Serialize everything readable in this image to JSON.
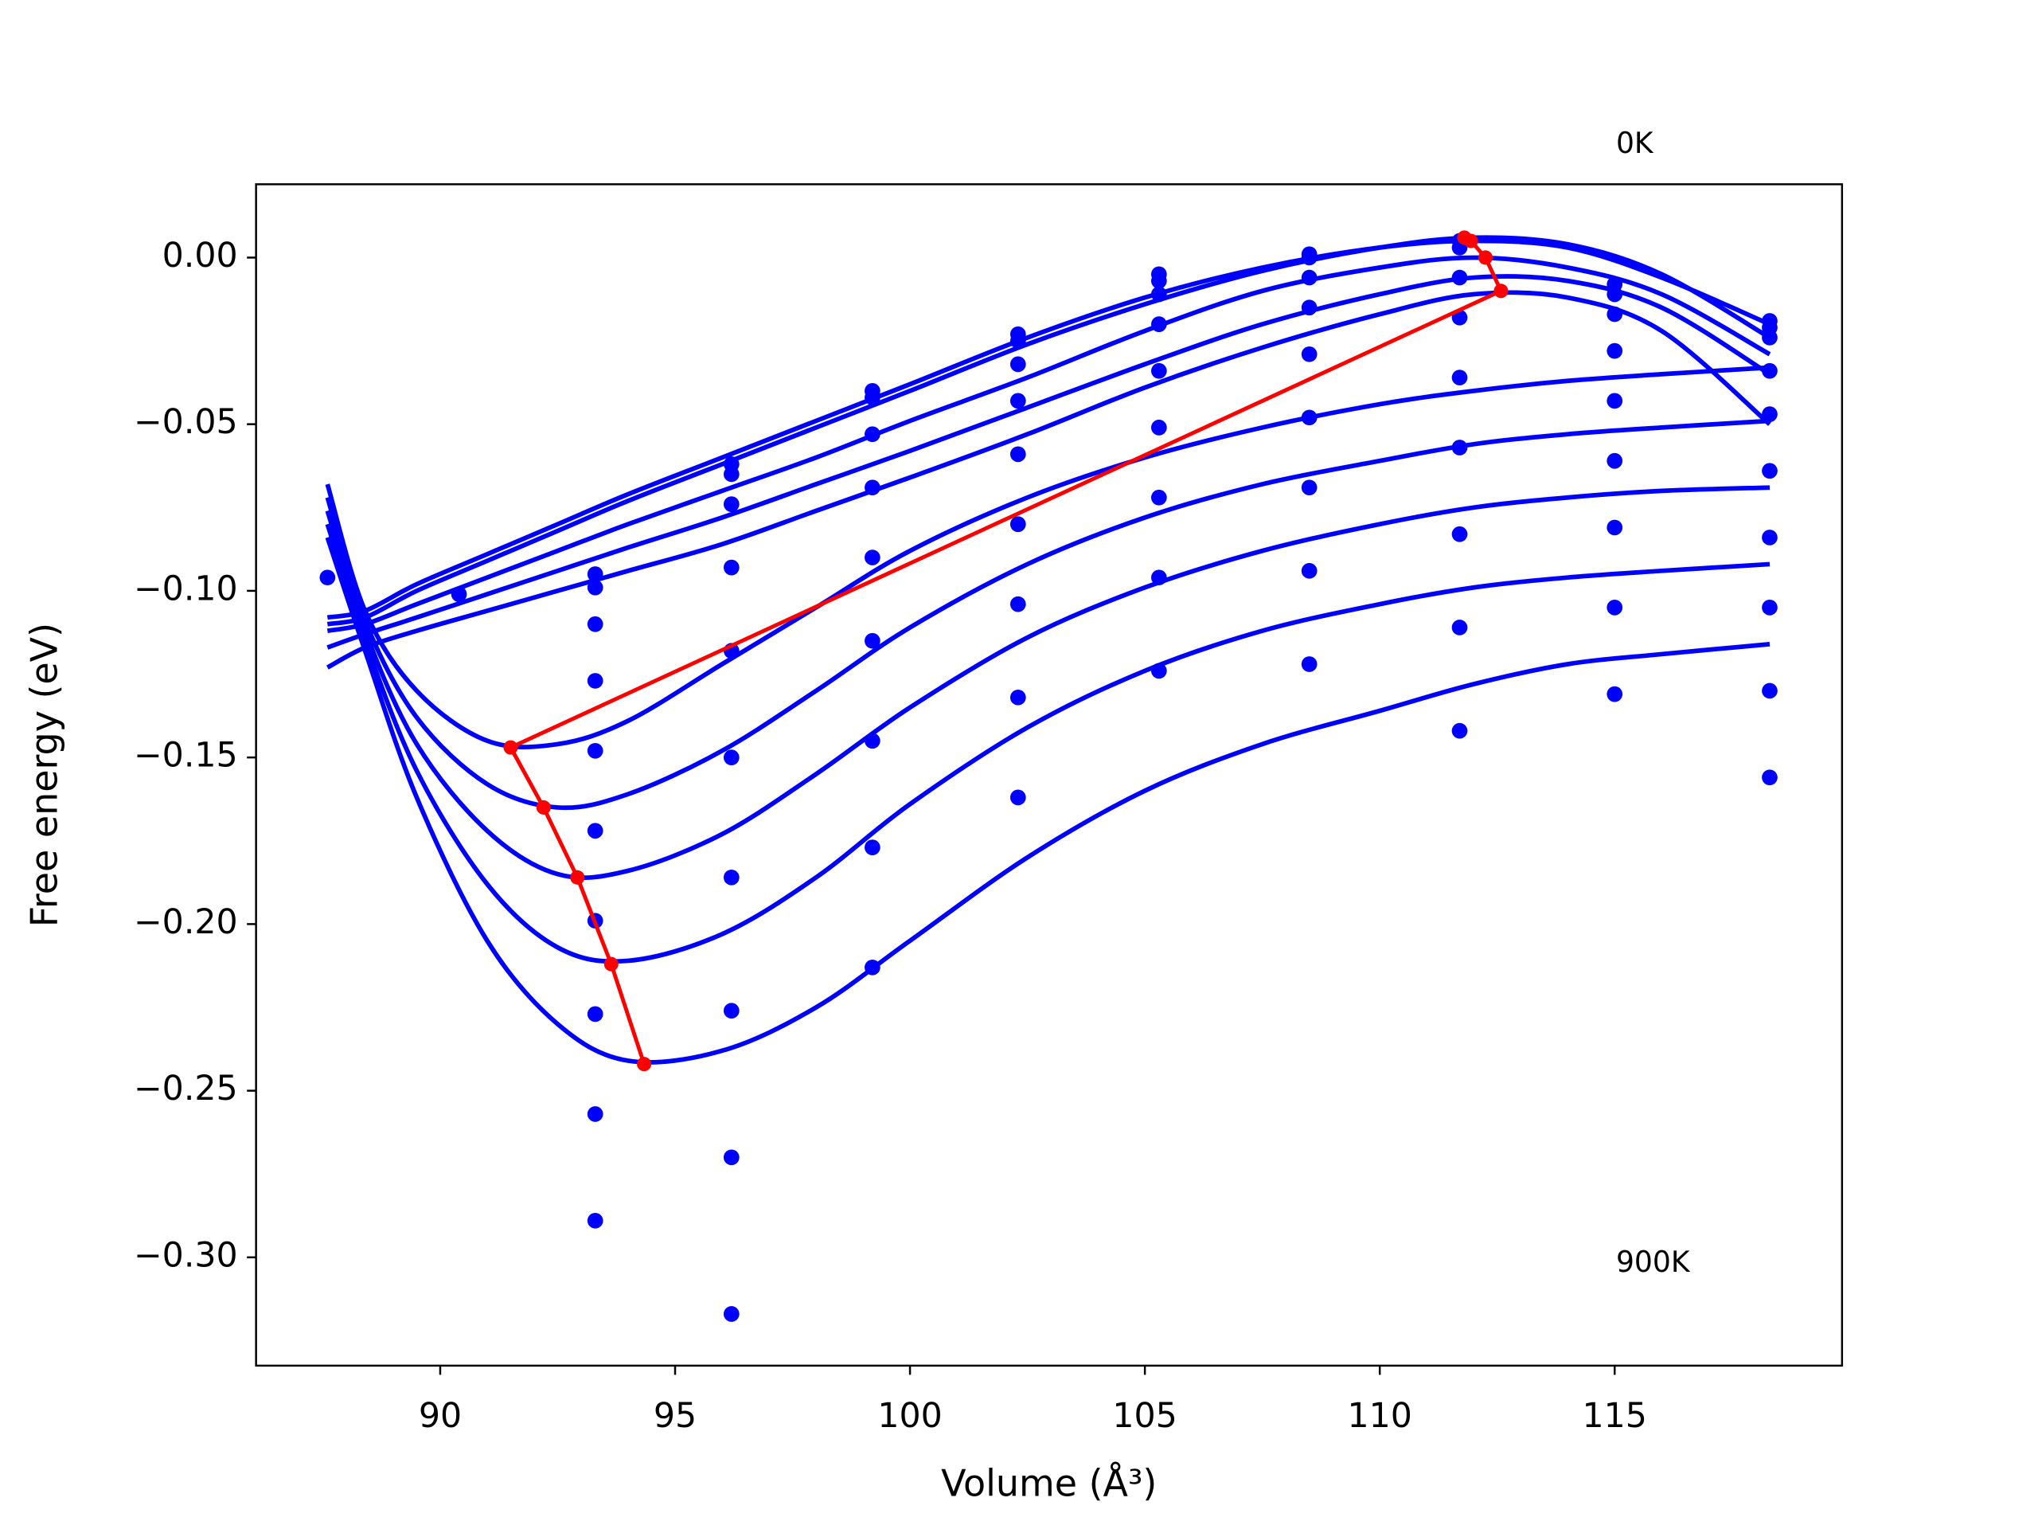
{
  "chart_data": {
    "type": "line",
    "xlabel": "Volume (Å³)",
    "ylabel": "Free energy (eV)",
    "annotations": [
      "0K",
      "900K"
    ],
    "xlim": [
      86.08,
      119.84
    ],
    "ylim": [
      -0.3325,
      0.022
    ],
    "xticks": [
      90,
      95,
      100,
      105,
      110,
      115
    ],
    "yticks": [
      {
        "value": 0.0,
        "label": "0.00"
      },
      {
        "value": -0.05,
        "label": "−0.05"
      },
      {
        "value": -0.1,
        "label": "−0.10"
      },
      {
        "value": -0.15,
        "label": "−0.15"
      },
      {
        "value": -0.2,
        "label": "−0.20"
      },
      {
        "value": -0.25,
        "label": "−0.25"
      },
      {
        "value": -0.3,
        "label": "−0.30"
      }
    ],
    "grid": false,
    "x": [
      87.6,
      88.4,
      89.5,
      91,
      92.5,
      94,
      96,
      98,
      100,
      102.5,
      105,
      107.5,
      110,
      112,
      114,
      116,
      118.3
    ],
    "series": [
      {
        "color": "#0000ff",
        "values": [
          -0.108,
          -0.106,
          -0.098,
          -0.089,
          -0.08,
          -0.071,
          -0.06,
          -0.049,
          -0.038,
          -0.024,
          -0.012,
          -0.003,
          0.003,
          0.005,
          0.003,
          -0.006,
          -0.02
        ]
      },
      {
        "color": "#0000ff",
        "values": [
          -0.11,
          -0.108,
          -0.1,
          -0.091,
          -0.082,
          -0.073,
          -0.062,
          -0.051,
          -0.04,
          -0.026,
          -0.014,
          -0.004,
          0.003,
          0.006,
          0.004,
          -0.005,
          -0.024
        ]
      },
      {
        "color": "#0000ff",
        "values": [
          -0.112,
          -0.11,
          -0.104,
          -0.096,
          -0.088,
          -0.08,
          -0.07,
          -0.06,
          -0.049,
          -0.036,
          -0.022,
          -0.01,
          -0.003,
          0.0,
          -0.003,
          -0.011,
          -0.029
        ]
      },
      {
        "color": "#0000ff",
        "values": [
          -0.117,
          -0.113,
          -0.108,
          -0.101,
          -0.094,
          -0.087,
          -0.078,
          -0.068,
          -0.058,
          -0.045,
          -0.032,
          -0.02,
          -0.011,
          -0.006,
          -0.007,
          -0.015,
          -0.035
        ]
      },
      {
        "color": "#0000ff",
        "values": [
          -0.123,
          -0.117,
          -0.112,
          -0.106,
          -0.1,
          -0.094,
          -0.086,
          -0.076,
          -0.066,
          -0.053,
          -0.039,
          -0.027,
          -0.017,
          -0.011,
          -0.012,
          -0.022,
          -0.05
        ]
      },
      {
        "color": "#0000ff",
        "values": [
          -0.068,
          -0.106,
          -0.13,
          -0.145,
          -0.146,
          -0.139,
          -0.122,
          -0.105,
          -0.088,
          -0.072,
          -0.06,
          -0.051,
          -0.044,
          -0.04,
          -0.037,
          -0.035,
          -0.033
        ]
      },
      {
        "color": "#0000ff",
        "values": [
          -0.072,
          -0.109,
          -0.138,
          -0.158,
          -0.165,
          -0.161,
          -0.148,
          -0.13,
          -0.111,
          -0.092,
          -0.078,
          -0.068,
          -0.061,
          -0.056,
          -0.053,
          -0.051,
          -0.049
        ]
      },
      {
        "color": "#0000ff",
        "values": [
          -0.076,
          -0.112,
          -0.146,
          -0.172,
          -0.185,
          -0.184,
          -0.173,
          -0.155,
          -0.135,
          -0.114,
          -0.099,
          -0.088,
          -0.08,
          -0.075,
          -0.072,
          -0.07,
          -0.069
        ]
      },
      {
        "color": "#0000ff",
        "values": [
          -0.08,
          -0.115,
          -0.154,
          -0.188,
          -0.207,
          -0.211,
          -0.203,
          -0.186,
          -0.164,
          -0.141,
          -0.124,
          -0.112,
          -0.104,
          -0.099,
          -0.096,
          -0.094,
          -0.092
        ]
      },
      {
        "color": "#0000ff",
        "values": [
          -0.084,
          -0.118,
          -0.162,
          -0.205,
          -0.23,
          -0.241,
          -0.238,
          -0.225,
          -0.205,
          -0.18,
          -0.16,
          -0.146,
          -0.136,
          -0.128,
          -0.122,
          -0.119,
          -0.116
        ]
      }
    ],
    "scatter": {
      "color": "#0000ff",
      "x": [
        87.6,
        90.4,
        93.3,
        93.3,
        93.3,
        93.3,
        93.3,
        93.3,
        93.3,
        93.3,
        93.3,
        93.3,
        96.2,
        96.2,
        96.2,
        96.2,
        96.2,
        96.2,
        96.2,
        96.2,
        96.2,
        96.2,
        99.2,
        99.2,
        99.2,
        99.2,
        99.2,
        99.2,
        99.2,
        99.2,
        99.2,
        102.3,
        102.3,
        102.3,
        102.3,
        102.3,
        102.3,
        102.3,
        102.3,
        102.3,
        105.3,
        105.3,
        105.3,
        105.3,
        105.3,
        105.3,
        105.3,
        105.3,
        105.3,
        108.5,
        108.5,
        108.5,
        108.5,
        108.5,
        108.5,
        108.5,
        108.5,
        108.5,
        111.7,
        111.7,
        111.7,
        111.7,
        111.7,
        111.7,
        111.7,
        111.7,
        111.7,
        115.0,
        115.0,
        115.0,
        115.0,
        115.0,
        115.0,
        115.0,
        115.0,
        115.0,
        118.3,
        118.3,
        118.3,
        118.3,
        118.3,
        118.3,
        118.3,
        118.3,
        118.3,
        118.3
      ],
      "values": [
        -0.096,
        -0.101,
        -0.095,
        -0.099,
        -0.11,
        -0.127,
        -0.148,
        -0.172,
        -0.199,
        -0.227,
        -0.257,
        -0.289,
        -0.062,
        -0.065,
        -0.074,
        -0.093,
        -0.118,
        -0.15,
        -0.186,
        -0.226,
        -0.27,
        -0.317,
        -0.04,
        -0.042,
        -0.053,
        -0.069,
        -0.09,
        -0.115,
        -0.145,
        -0.177,
        -0.213,
        -0.023,
        -0.025,
        -0.032,
        -0.043,
        -0.059,
        -0.08,
        -0.104,
        -0.132,
        -0.162,
        -0.005,
        -0.007,
        -0.011,
        -0.02,
        -0.034,
        -0.051,
        -0.072,
        -0.096,
        -0.124,
        0.001,
        0.0,
        -0.006,
        -0.015,
        -0.029,
        -0.048,
        -0.069,
        -0.094,
        -0.122,
        0.005,
        0.003,
        -0.006,
        -0.018,
        -0.036,
        -0.057,
        -0.083,
        -0.111,
        -0.142,
        -0.008,
        -0.011,
        -0.017,
        -0.028,
        -0.043,
        -0.061,
        -0.081,
        -0.105,
        -0.131,
        -0.019,
        -0.021,
        -0.024,
        -0.034,
        -0.047,
        -0.064,
        -0.084,
        -0.105,
        -0.13,
        -0.156
      ]
    },
    "minima": {
      "color": "#ff0000",
      "x": [
        111.8,
        111.94,
        112.25,
        112.58,
        91.5,
        92.2,
        92.92,
        93.64,
        94.34
      ],
      "values": [
        0.006,
        0.005,
        0.0,
        -0.01,
        -0.147,
        -0.165,
        -0.186,
        -0.212,
        -0.242
      ]
    }
  }
}
